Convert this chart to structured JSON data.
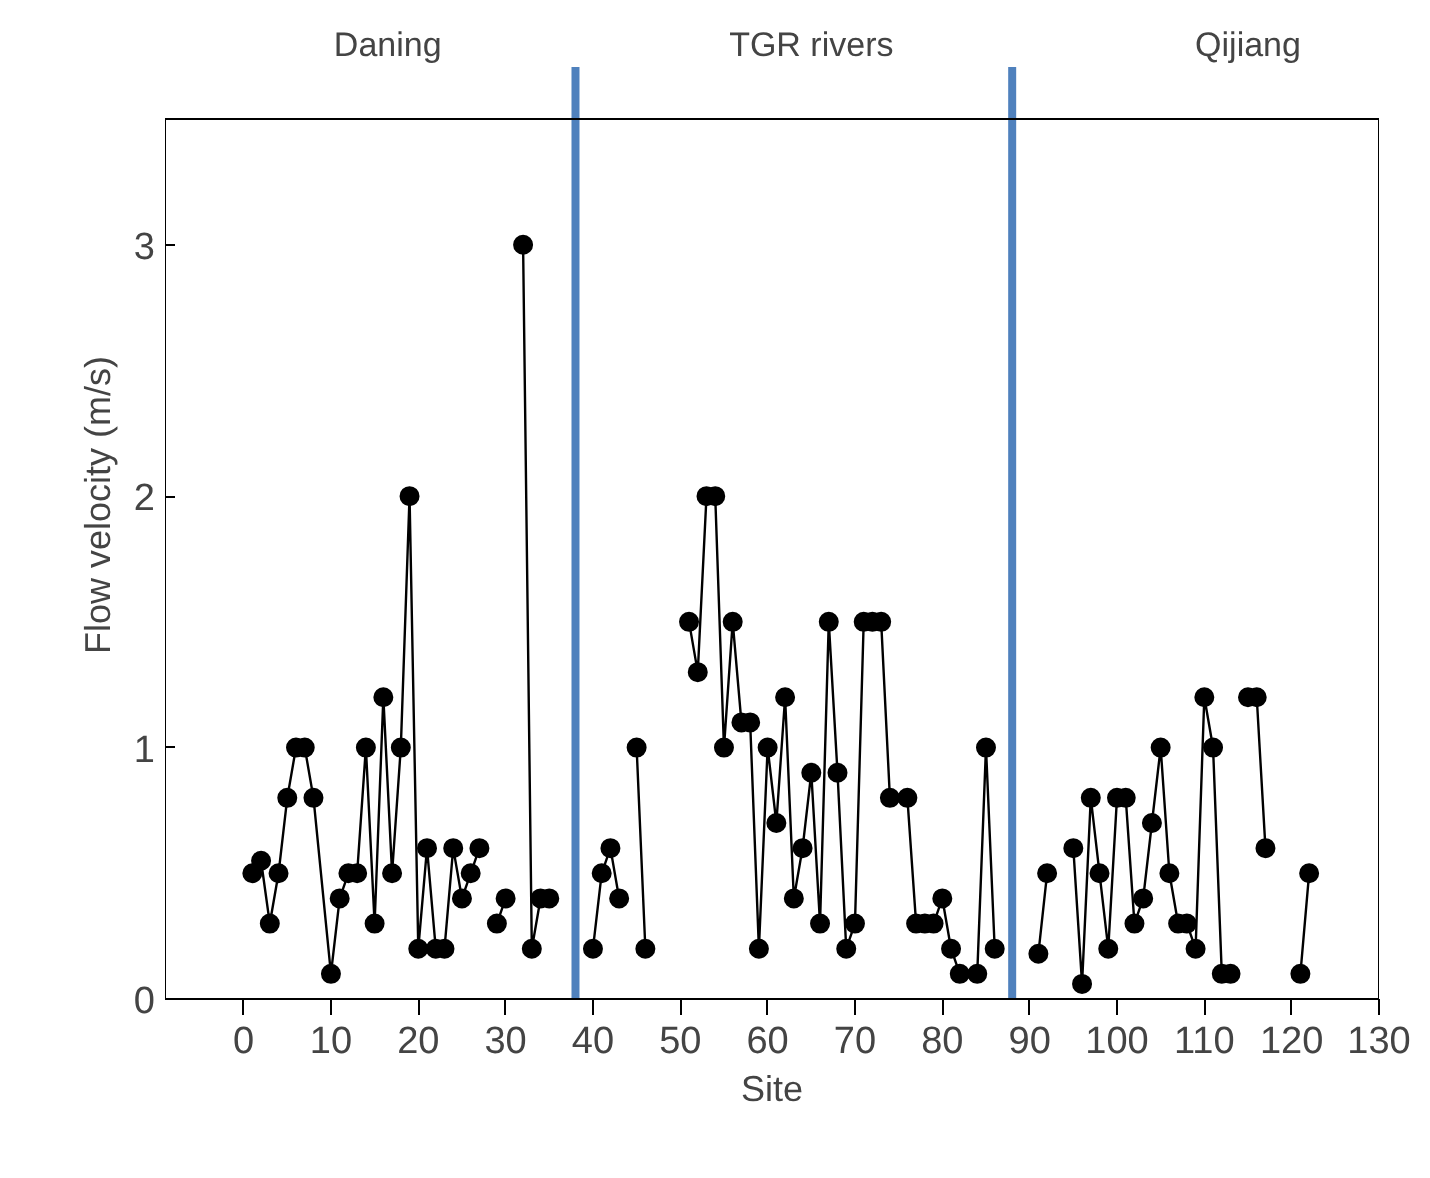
{
  "chart_data": {
    "type": "line",
    "xlabel": "Site",
    "ylabel": "Flow velocity (m/s)",
    "x": [
      1,
      2,
      3,
      4,
      5,
      6,
      7,
      8,
      10,
      11,
      12,
      13,
      14,
      15,
      16,
      17,
      18,
      19,
      20,
      21,
      22,
      23,
      24,
      25,
      26,
      27,
      28,
      29,
      30,
      31,
      32,
      33,
      34,
      35,
      38,
      40,
      41,
      42,
      43,
      44,
      45,
      46,
      48,
      51,
      52,
      53,
      54,
      55,
      56,
      57,
      58,
      59,
      60,
      61,
      62,
      63,
      64,
      65,
      66,
      67,
      68,
      69,
      70,
      71,
      72,
      73,
      74,
      76,
      77,
      78,
      79,
      80,
      81,
      82,
      84,
      85,
      86,
      88,
      91,
      92,
      93,
      95,
      96,
      97,
      98,
      99,
      100,
      101,
      102,
      103,
      104,
      105,
      106,
      107,
      108,
      109,
      110,
      111,
      112,
      113,
      114,
      115,
      116,
      117,
      119,
      121,
      122
    ],
    "series": [
      {
        "color": "#000000",
        "values": [
          0.5,
          0.55,
          0.3,
          0.5,
          0.8,
          1.0,
          1.0,
          0.8,
          0.1,
          0.4,
          0.5,
          0.5,
          1.0,
          0.3,
          1.2,
          0.5,
          1.0,
          2.0,
          0.2,
          0.6,
          0.2,
          0.2,
          0.6,
          0.4,
          0.5,
          0.6,
          null,
          0.3,
          0.4,
          null,
          3.0,
          0.2,
          0.4,
          0.4,
          null,
          0.2,
          0.5,
          0.6,
          0.4,
          null,
          1.0,
          0.2,
          null,
          1.5,
          1.3,
          2.0,
          2.0,
          1.0,
          1.5,
          1.1,
          1.1,
          0.2,
          1.0,
          0.7,
          1.2,
          0.4,
          0.6,
          0.9,
          0.3,
          1.5,
          0.9,
          0.2,
          0.3,
          1.5,
          1.5,
          1.5,
          0.8,
          0.8,
          0.3,
          0.3,
          0.3,
          0.4,
          0.2,
          0.1,
          0.1,
          1.0,
          0.2,
          null,
          0.18,
          0.5,
          null,
          0.6,
          0.06,
          0.8,
          0.5,
          0.2,
          0.8,
          0.8,
          0.3,
          0.4,
          0.7,
          1.0,
          0.5,
          0.3,
          0.3,
          0.2,
          1.2,
          1.0,
          0.1,
          0.1,
          null,
          1.2,
          1.2,
          0.6,
          null,
          0.1,
          0.5
        ]
      }
    ],
    "marker": "circle",
    "line_style": "solid",
    "grid": false,
    "xlim": [
      -9,
      130
    ],
    "xticks": [
      0,
      10,
      20,
      30,
      40,
      50,
      60,
      70,
      80,
      90,
      100,
      110,
      120,
      130
    ],
    "ylim": [
      0,
      3.5
    ],
    "yticks": [
      0,
      1,
      2,
      3
    ],
    "ref_lines": [
      {
        "axis": "x",
        "value": 38,
        "color": "#4f81bd"
      },
      {
        "axis": "x",
        "value": 88,
        "color": "#4f81bd"
      }
    ],
    "annotations": [
      "Daning",
      "TGR rivers",
      "Qijiang"
    ]
  }
}
